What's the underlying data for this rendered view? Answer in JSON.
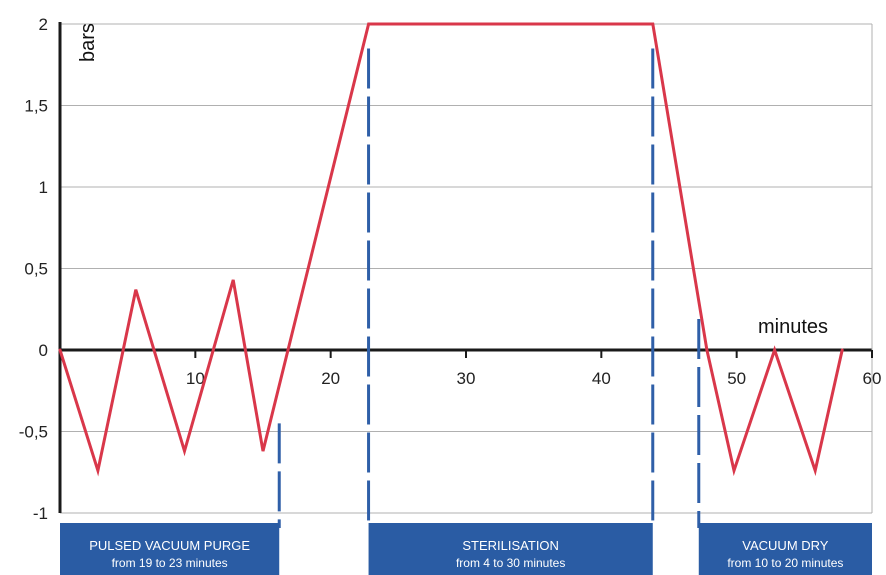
{
  "chart_data": {
    "type": "line",
    "title": "",
    "xlabel": "minutes",
    "ylabel": "bars",
    "xlim": [
      0,
      60
    ],
    "ylim": [
      -1,
      2
    ],
    "x_ticks": [
      "10",
      "20",
      "30",
      "40",
      "50",
      "60"
    ],
    "y_ticks": [
      "-1",
      "-0,5",
      "0",
      "0,5",
      "1",
      "1,5",
      "2"
    ],
    "grid": "horizontal",
    "series": [
      {
        "color": "#d9374a",
        "points": [
          [
            0,
            0
          ],
          [
            2.8,
            -0.74
          ],
          [
            5.6,
            0.37
          ],
          [
            9.2,
            -0.62
          ],
          [
            12.8,
            0.43
          ],
          [
            15.0,
            -0.62
          ],
          [
            22.8,
            2.0
          ],
          [
            43.8,
            2.0
          ],
          [
            47.8,
            0.0
          ],
          [
            49.8,
            -0.74
          ],
          [
            52.8,
            0.0
          ],
          [
            55.8,
            -0.74
          ],
          [
            57.8,
            0.0
          ]
        ]
      }
    ],
    "phase_markers": [
      {
        "x": 16.2,
        "y_top": -0.45,
        "color": "#2f5fa8"
      },
      {
        "x": 22.8,
        "y_top": 1.85,
        "color": "#2f5fa8"
      },
      {
        "x": 43.8,
        "y_top": 1.85,
        "color": "#2f5fa8"
      },
      {
        "x": 47.2,
        "y_top": 0.19,
        "color": "#2f5fa8"
      }
    ],
    "phases": [
      {
        "name": "PULSED VACUUM PURGE",
        "duration": "from 19 to 23 minutes",
        "x_start": 0,
        "x_end": 16.2
      },
      {
        "name": "STERILISATION",
        "duration": "from 4 to 30 minutes",
        "x_start": 22.8,
        "x_end": 43.8
      },
      {
        "name": "VACUUM DRY",
        "duration": "from 10 to 20 minutes",
        "x_start": 47.2,
        "x_end": 60
      }
    ],
    "colors": {
      "line": "#d9374a",
      "markers": "#2f5fa8",
      "phase_box": "#2a5ca4",
      "grid": "#b0b0b0",
      "axis": "#1a1a1a"
    }
  }
}
